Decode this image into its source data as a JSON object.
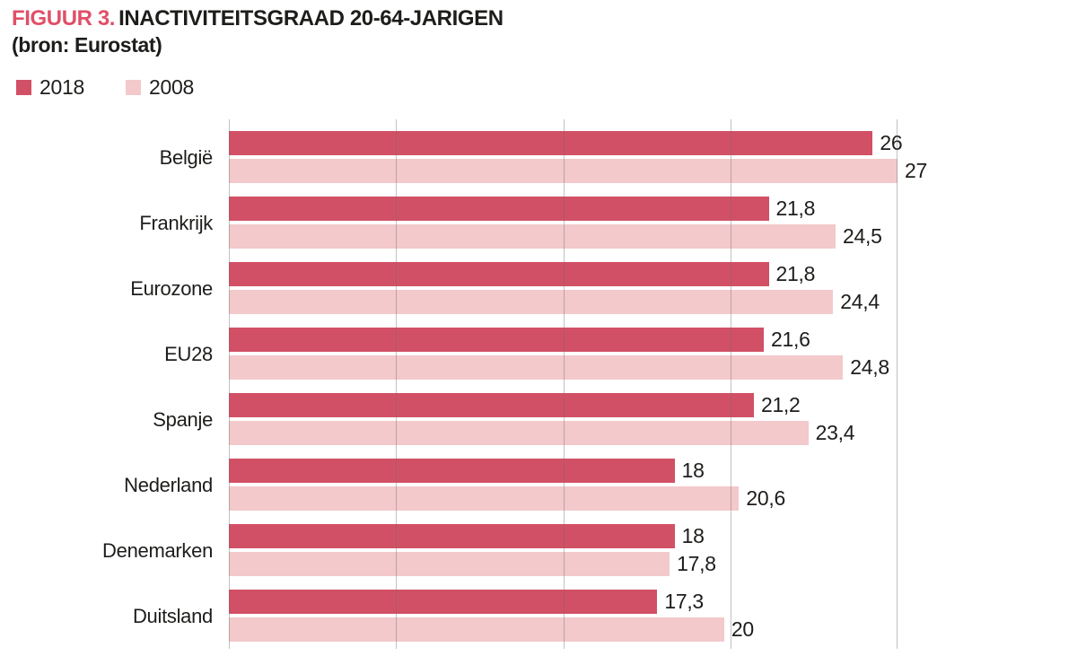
{
  "title": {
    "prefix": "FIGUUR 3.",
    "main": "INACTIVITEITSGRAAD 20-64-JARIGEN",
    "source": "(bron: Eurostat)"
  },
  "legend": {
    "items": [
      {
        "label": "2018",
        "color": "#d25066"
      },
      {
        "label": "2008",
        "color": "#f3c9cb"
      }
    ]
  },
  "colors": {
    "accent_title": "#e04f68",
    "series_2018": "#d25066",
    "series_2008": "#f3c9cb",
    "text": "#1d1d1b",
    "gridline": "rgba(110,110,110,0.42)"
  },
  "chart_data": {
    "type": "bar",
    "orientation": "horizontal",
    "title": "FIGUUR 3. INACTIVITEITSGRAAD 20-64-JARIGEN",
    "subtitle": "(bron: Eurostat)",
    "xlabel": "",
    "ylabel": "",
    "xlim": [
      0,
      27
    ],
    "gridline_count": 5,
    "grid": "on",
    "legend_position": "top-left",
    "categories": [
      "België",
      "Frankrijk",
      "Eurozone",
      "EU28",
      "Spanje",
      "Nederland",
      "Denemarken",
      "Duitsland"
    ],
    "series": [
      {
        "name": "2018",
        "color": "#d25066",
        "values": [
          26,
          21.8,
          21.8,
          21.6,
          21.2,
          18,
          18,
          17.3
        ],
        "labels": [
          "26",
          "21,8",
          "21,8",
          "21,6",
          "21,2",
          "18",
          "18",
          "17,3"
        ]
      },
      {
        "name": "2008",
        "color": "#f3c9cb",
        "values": [
          27,
          24.5,
          24.4,
          24.8,
          23.4,
          20.6,
          17.8,
          20
        ],
        "labels": [
          "27",
          "24,5",
          "24,4",
          "24,8",
          "23,4",
          "20,6",
          "17,8",
          "20"
        ]
      }
    ]
  }
}
